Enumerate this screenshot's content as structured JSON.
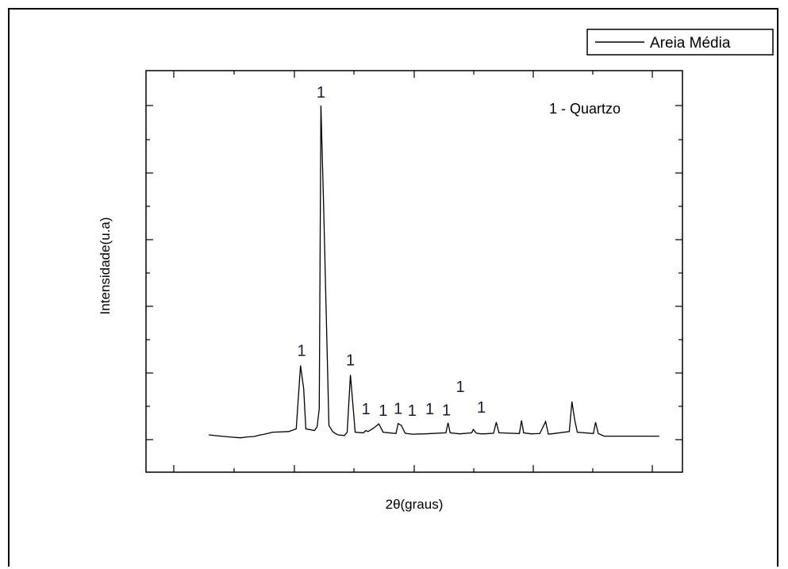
{
  "chart_data": {
    "type": "line",
    "title": "",
    "xlabel": "2θ(graus)",
    "ylabel": "Intensidade(u.a)",
    "xlim": [
      0,
      100
    ],
    "ylim": [
      0,
      100
    ],
    "tick_labels_shown": false,
    "grid": false,
    "legend_placement": "top-right",
    "legend": [
      "Areia Média"
    ],
    "annotation": "1 - Quartzo",
    "series": [
      {
        "name": "Areia Média",
        "color": "#000000",
        "x": [
          11.7,
          14.0,
          16.0,
          17.6,
          19.0,
          20.1,
          21.1,
          22.1,
          23.6,
          26.6,
          28.0,
          28.8,
          29.4,
          29.8,
          31.4,
          31.9,
          32.3,
          32.6,
          33.1,
          34.1,
          34.8,
          35.3,
          35.8,
          37.0,
          37.5,
          38.1,
          39.0,
          40.5,
          41.0,
          41.4,
          42.4,
          43.4,
          44.2,
          46.6,
          47.0,
          47.6,
          48.3,
          49.6,
          52.0,
          55.9,
          56.3,
          56.7,
          58.5,
          60.7,
          61.0,
          61.6,
          62.4,
          63.1,
          64.8,
          65.3,
          65.8,
          69.6,
          70.0,
          70.4,
          71.8,
          73.4,
          74.5,
          75.0,
          75.6,
          78.9,
          79.4,
          79.9,
          80.4,
          83.4,
          83.8,
          84.3,
          85.4,
          87.9,
          88.3,
          88.5,
          88.9,
          89.2,
          90.7,
          93.1,
          93.5,
          93.8,
          95.7
        ],
        "values": [
          1.2,
          0.8,
          0.5,
          0.3,
          0.6,
          0.7,
          1.1,
          1.4,
          2.0,
          2.2,
          3.0,
          22.0,
          15.0,
          3.0,
          2.5,
          3.6,
          9.0,
          100.0,
          70.0,
          4.0,
          2.2,
          1.6,
          1.2,
          1.0,
          2.0,
          19.2,
          2.0,
          1.8,
          2.5,
          2.2,
          3.2,
          4.5,
          2.0,
          1.6,
          4.6,
          4.0,
          1.7,
          1.4,
          1.5,
          1.8,
          4.8,
          1.8,
          1.5,
          1.8,
          2.8,
          1.7,
          1.5,
          1.5,
          1.7,
          5.0,
          1.8,
          1.6,
          5.5,
          1.8,
          1.5,
          1.6,
          5.2,
          1.4,
          1.5,
          2.2,
          11.2,
          5.8,
          2.0,
          1.6,
          5.0,
          1.6,
          0.8,
          0.8,
          0.8,
          0.8,
          0.8,
          0.8,
          0.8,
          0.8,
          0.8,
          0.8,
          0.8
        ]
      }
    ],
    "peak_labels": [
      {
        "text": "1",
        "x": 29.0,
        "y": 22.5
      },
      {
        "text": "1",
        "x": 32.6,
        "y": 100.0
      },
      {
        "text": "1",
        "x": 38.1,
        "y": 19.7
      },
      {
        "text": "1",
        "x": 41.0,
        "y": 5.0
      },
      {
        "text": "1",
        "x": 44.2,
        "y": 4.5
      },
      {
        "text": "1",
        "x": 47.0,
        "y": 5.1
      },
      {
        "text": "1",
        "x": 49.6,
        "y": 4.5
      },
      {
        "text": "1",
        "x": 52.9,
        "y": 5.0
      },
      {
        "text": "1",
        "x": 56.0,
        "y": 4.6
      },
      {
        "text": "1",
        "x": 58.6,
        "y": 11.7
      },
      {
        "text": "1",
        "x": 62.5,
        "y": 5.5
      }
    ]
  }
}
